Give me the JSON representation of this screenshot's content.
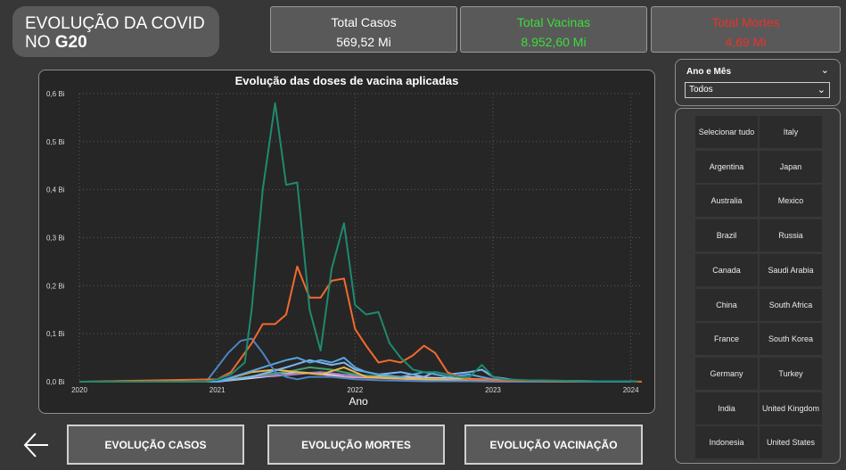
{
  "header": {
    "title_line1": "EVOLUÇÃO DA COVID",
    "title_line2_prefix": "NO ",
    "title_line2_bold": "G20"
  },
  "kpis": [
    {
      "label": "Total Casos",
      "value": "569,52 Mi",
      "color": "#ffffff"
    },
    {
      "label": "Total Vacinas",
      "value": "8.952,60 Mi",
      "color": "#3ddc3d"
    },
    {
      "label": "Total Mortes",
      "value": "4,69 Mi",
      "color": "#e8332c"
    }
  ],
  "slicer_date": {
    "label": "Ano e Mês",
    "selected": "Todos"
  },
  "countries": [
    "Selecionar tudo",
    "Italy",
    "Argentina",
    "Japan",
    "Australia",
    "Mexico",
    "Brazil",
    "Russia",
    "Canada",
    "Saudi Arabia",
    "China",
    "South Africa",
    "France",
    "South Korea",
    "Germany",
    "Turkey",
    "India",
    "United Kingdom",
    "Indonesia",
    "United States"
  ],
  "nav": {
    "casos": "EVOLUÇÃO CASOS",
    "mortes": "EVOLUÇÃO MORTES",
    "vacinacao": "EVOLUÇÃO VACINAÇÃO"
  },
  "chart_data": {
    "type": "line",
    "title": "Evolução das doses de vacina aplicadas",
    "xlabel": "Ano",
    "ylabel": "",
    "x_ticks": [
      "2020",
      "2021",
      "2022",
      "2023",
      "2024"
    ],
    "y_ticks": [
      "0,0 Bi",
      "0,1 Bi",
      "0,2 Bi",
      "0,3 Bi",
      "0,4 Bi",
      "0,5 Bi",
      "0,6 Bi"
    ],
    "xlim": [
      2020.0,
      2024.08
    ],
    "ylim": [
      0,
      0.6
    ],
    "grid": true,
    "series": [
      {
        "color": "#1f8a6e",
        "x": [
          2020.0,
          2020.92,
          2021.0,
          2021.1,
          2021.2,
          2021.25,
          2021.33,
          2021.42,
          2021.5,
          2021.58,
          2021.67,
          2021.75,
          2021.83,
          2021.92,
          2022.0,
          2022.08,
          2022.17,
          2022.25,
          2022.33,
          2022.42,
          2022.5,
          2022.58,
          2022.67,
          2022.75,
          2022.83,
          2022.92,
          2023.0,
          2023.08,
          2023.25,
          2023.5,
          2023.75,
          2024.0,
          2024.05
        ],
        "y": [
          0,
          0,
          0.005,
          0.015,
          0.04,
          0.15,
          0.4,
          0.58,
          0.41,
          0.415,
          0.15,
          0.065,
          0.235,
          0.33,
          0.16,
          0.14,
          0.145,
          0.08,
          0.05,
          0.025,
          0.02,
          0.02,
          0.015,
          0.01,
          0.01,
          0.035,
          0.01,
          0.005,
          0.003,
          0.002,
          0.001,
          0.001,
          0
        ]
      },
      {
        "color": "#f26a2e",
        "x": [
          2020.0,
          2021.0,
          2021.1,
          2021.2,
          2021.25,
          2021.33,
          2021.42,
          2021.5,
          2021.58,
          2021.67,
          2021.75,
          2021.83,
          2021.92,
          2022.0,
          2022.08,
          2022.17,
          2022.25,
          2022.33,
          2022.42,
          2022.5,
          2022.58,
          2022.67,
          2022.75,
          2022.83,
          2022.92,
          2023.0,
          2023.17,
          2023.5,
          2024.0,
          2024.08
        ],
        "y": [
          0,
          0.005,
          0.02,
          0.06,
          0.08,
          0.12,
          0.12,
          0.14,
          0.24,
          0.175,
          0.175,
          0.21,
          0.215,
          0.11,
          0.075,
          0.04,
          0.045,
          0.04,
          0.055,
          0.075,
          0.06,
          0.02,
          0.01,
          0.005,
          0.005,
          0.003,
          0.002,
          0.001,
          0.001,
          0
        ]
      },
      {
        "color": "#4e84c4",
        "x": [
          2020.0,
          2020.92,
          2021.0,
          2021.08,
          2021.17,
          2021.25,
          2021.33,
          2021.42,
          2021.5,
          2021.58,
          2021.67,
          2021.83,
          2022.0,
          2022.17,
          2022.33,
          2022.5,
          2022.67,
          2022.83,
          2023.0,
          2023.17,
          2023.5,
          2024.0
        ],
        "y": [
          0,
          0,
          0.03,
          0.06,
          0.085,
          0.09,
          0.06,
          0.02,
          0.01,
          0.005,
          0.01,
          0.01,
          0.005,
          0.003,
          0.002,
          0.001,
          0.001,
          0.001,
          0,
          0,
          0,
          0
        ]
      },
      {
        "color": "#5aa6e0",
        "x": [
          2020.0,
          2021.0,
          2021.17,
          2021.33,
          2021.5,
          2021.58,
          2021.67,
          2021.75,
          2021.83,
          2021.92,
          2022.0,
          2022.08,
          2022.17,
          2022.33,
          2022.5,
          2022.67,
          2022.83,
          2023.0,
          2023.25,
          2024.0
        ],
        "y": [
          0,
          0,
          0.015,
          0.03,
          0.045,
          0.05,
          0.04,
          0.045,
          0.04,
          0.05,
          0.03,
          0.02,
          0.015,
          0.01,
          0.02,
          0.01,
          0.015,
          0.005,
          0.002,
          0
        ]
      },
      {
        "color": "#7fb6f0",
        "x": [
          2020.0,
          2021.0,
          2021.25,
          2021.5,
          2021.67,
          2021.83,
          2021.92,
          2022.0,
          2022.17,
          2022.33,
          2022.5,
          2022.58,
          2022.67,
          2022.83,
          2022.92,
          2023.0,
          2023.17,
          2024.0
        ],
        "y": [
          0,
          0,
          0.01,
          0.03,
          0.045,
          0.035,
          0.04,
          0.025,
          0.015,
          0.02,
          0.01,
          0.02,
          0.015,
          0.02,
          0.025,
          0.01,
          0.003,
          0
        ]
      },
      {
        "color": "#e8b64a",
        "x": [
          2020.0,
          2021.0,
          2021.25,
          2021.42,
          2021.58,
          2021.75,
          2021.92,
          2022.08,
          2022.25,
          2022.5,
          2022.75,
          2023.0,
          2024.0
        ],
        "y": [
          0,
          0,
          0.02,
          0.025,
          0.02,
          0.015,
          0.03,
          0.01,
          0.008,
          0.005,
          0.003,
          0.001,
          0
        ]
      },
      {
        "color": "#3fa36a",
        "x": [
          2020.0,
          2021.0,
          2021.33,
          2021.5,
          2021.67,
          2021.83,
          2022.0,
          2022.17,
          2022.5,
          2022.83,
          2023.0,
          2024.0
        ],
        "y": [
          0,
          0,
          0.015,
          0.02,
          0.03,
          0.025,
          0.015,
          0.01,
          0.005,
          0.003,
          0.001,
          0
        ]
      },
      {
        "color": "#9a7ed0",
        "x": [
          2020.0,
          2021.0,
          2021.25,
          2021.5,
          2021.75,
          2022.0,
          2022.25,
          2022.5,
          2022.75,
          2023.0,
          2024.0
        ],
        "y": [
          0,
          0,
          0.01,
          0.015,
          0.02,
          0.012,
          0.008,
          0.006,
          0.004,
          0.002,
          0
        ]
      },
      {
        "color": "#d9d9d9",
        "x": [
          2020.0,
          2021.0,
          2021.33,
          2021.58,
          2021.83,
          2022.08,
          2022.33,
          2022.58,
          2022.83,
          2023.08,
          2024.0
        ],
        "y": [
          0,
          0,
          0.01,
          0.02,
          0.015,
          0.012,
          0.01,
          0.008,
          0.006,
          0.003,
          0
        ]
      },
      {
        "color": "#f0a0b0",
        "x": [
          2020.0,
          2021.0,
          2021.17,
          2021.42,
          2021.67,
          2021.92,
          2022.17,
          2022.42,
          2022.67,
          2022.92,
          2024.0
        ],
        "y": [
          0,
          0,
          0.008,
          0.012,
          0.018,
          0.01,
          0.008,
          0.005,
          0.004,
          0.002,
          0
        ]
      }
    ]
  }
}
